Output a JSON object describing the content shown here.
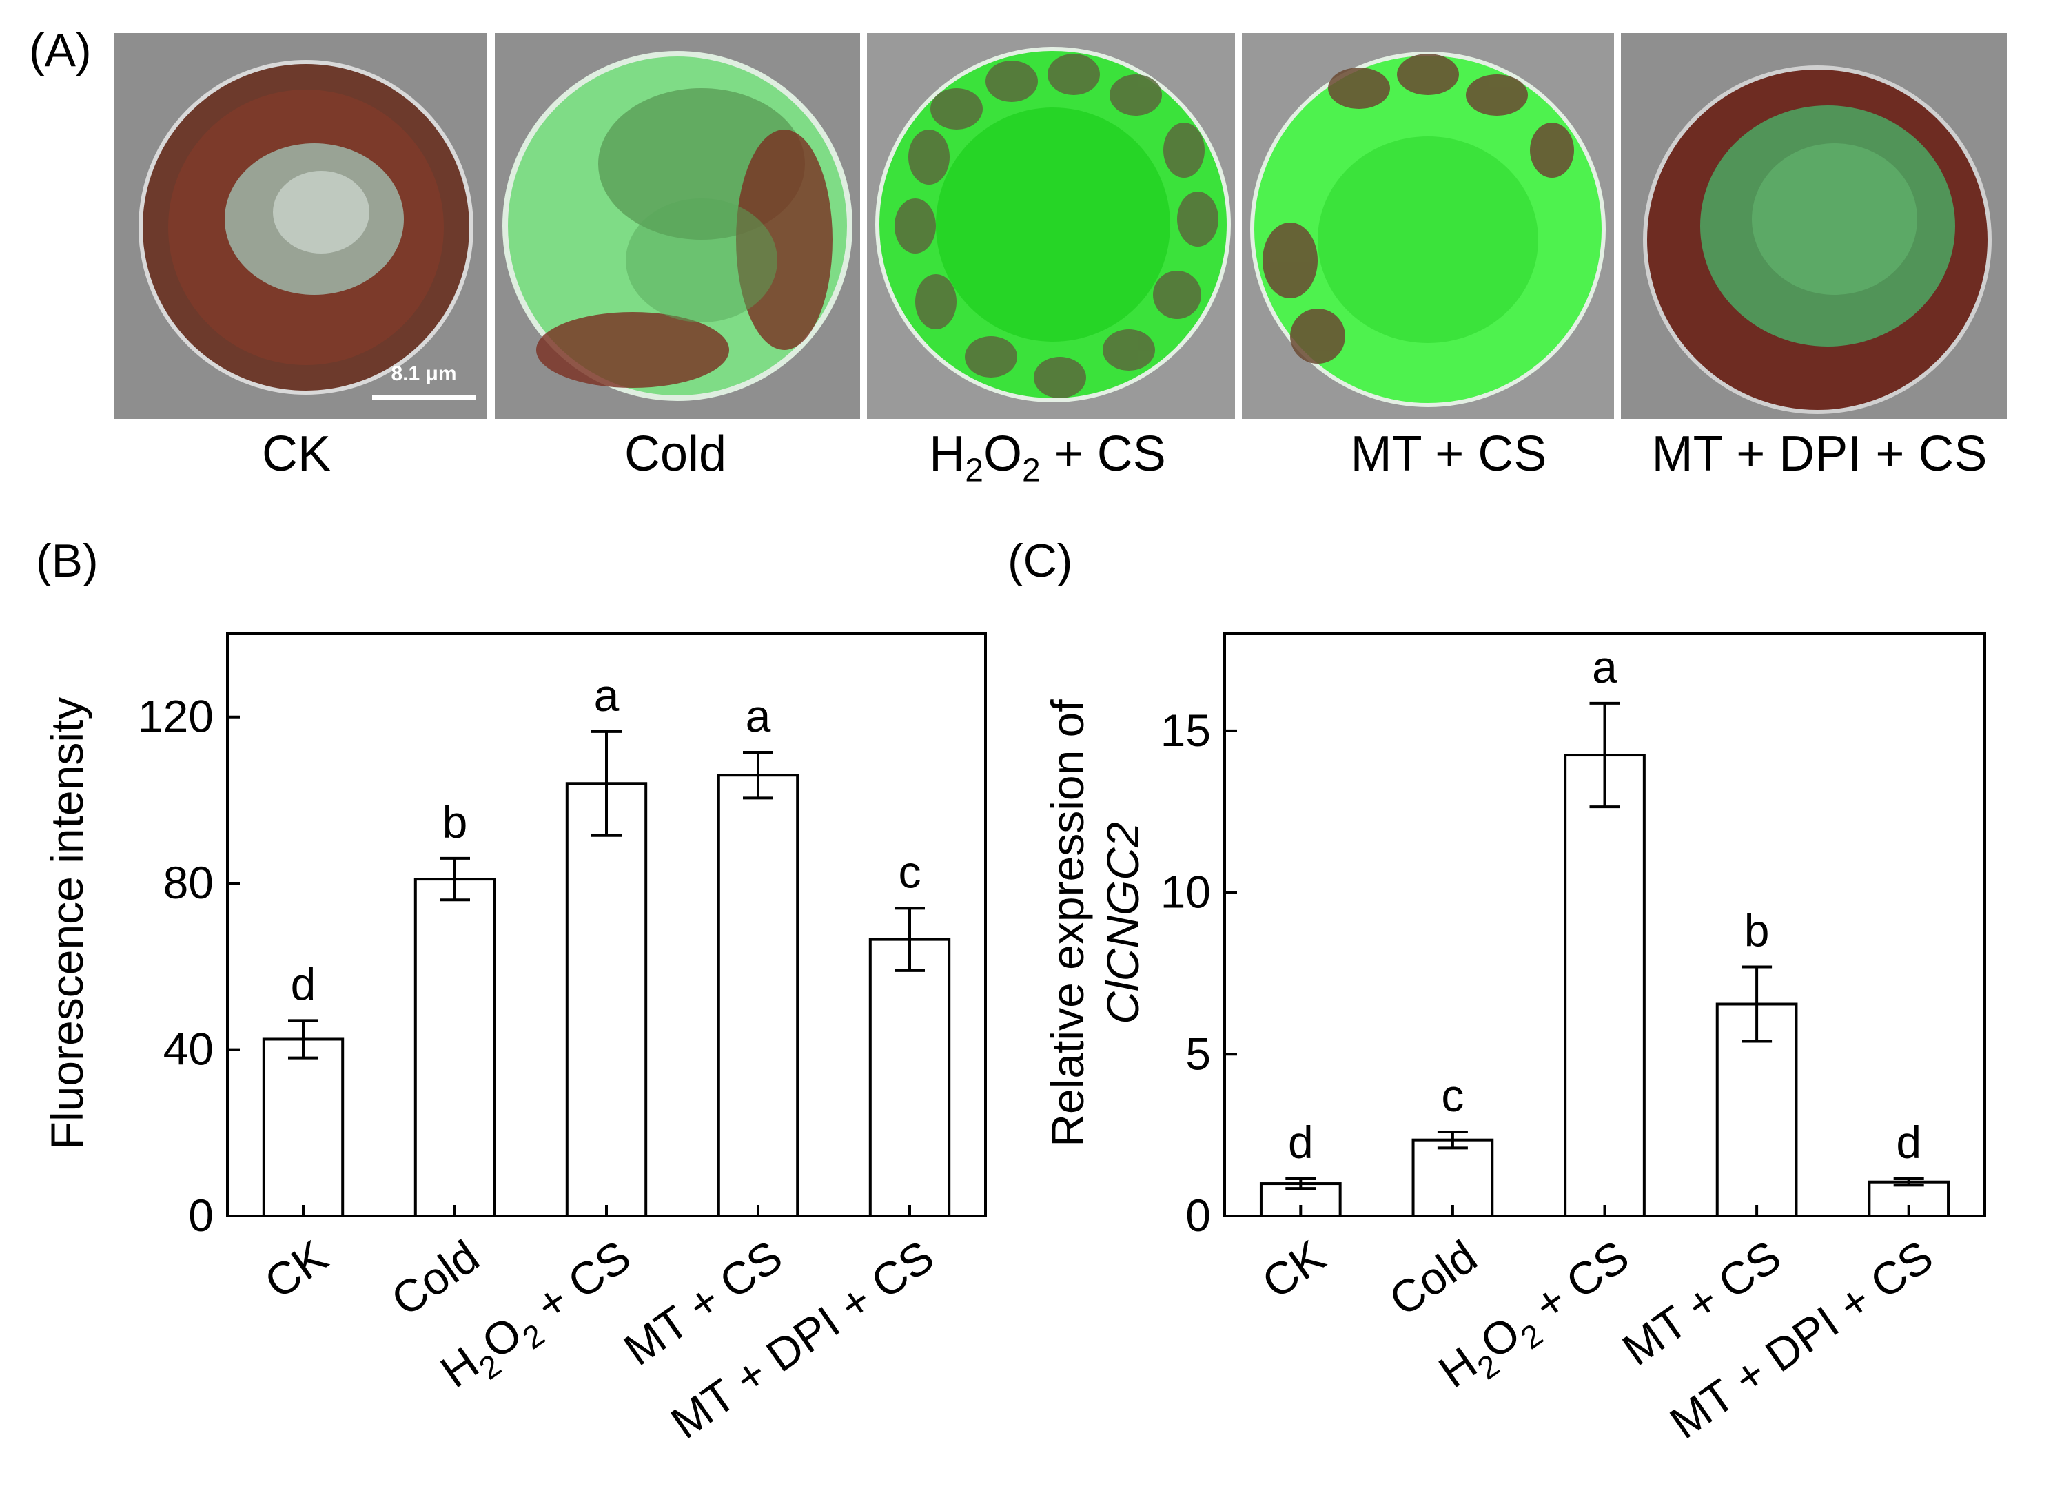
{
  "panels": {
    "a": "(A)",
    "b": "(B)",
    "c": "(C)"
  },
  "micrographs": {
    "scale_bar": "8.1 μm",
    "captions": [
      {
        "main": "CK",
        "sub": "",
        "tail": ""
      },
      {
        "main": "Cold",
        "sub": "",
        "tail": ""
      },
      {
        "main": "H",
        "sub": "2",
        "tail": "O"
      },
      {
        "main": "MT + CS",
        "sub": "",
        "tail": ""
      },
      {
        "main": "MT + DPI + CS",
        "sub": "",
        "tail": ""
      }
    ],
    "h2o2_caption_end": "2",
    "h2o2_caption_rest": " + CS"
  },
  "chart_data": [
    {
      "type": "bar",
      "panel": "(B)",
      "ylabel": "Fluorescence intensity",
      "categories": [
        "CK",
        "Cold",
        "H2O2 + CS",
        "MT + CS",
        "MT + DPI + CS"
      ],
      "values": [
        42.5,
        81,
        104,
        106,
        66.5
      ],
      "errors": [
        4.5,
        5,
        12.5,
        5.5,
        7.5
      ],
      "significance": [
        "d",
        "b",
        "a",
        "a",
        "c"
      ],
      "ylim": [
        0,
        140
      ],
      "yticks": [
        0,
        40,
        80,
        120
      ]
    },
    {
      "type": "bar",
      "panel": "(C)",
      "ylabel": "Relative expression of",
      "ylabel_gene": "ClCNGC2",
      "categories": [
        "CK",
        "Cold",
        "H2O2 + CS",
        "MT + CS",
        "MT + DPI + CS"
      ],
      "values": [
        1.0,
        2.35,
        14.25,
        6.55,
        1.05
      ],
      "errors": [
        0.15,
        0.25,
        1.6,
        1.15,
        0.1
      ],
      "significance": [
        "d",
        "c",
        "a",
        "b",
        "d"
      ],
      "ylim": [
        0,
        18
      ],
      "yticks": [
        0,
        5,
        10,
        15
      ]
    }
  ],
  "colors": {
    "bar_fill": "#ffffff",
    "bar_stroke": "#000000",
    "green": "#3ee83e",
    "chloroplast": "#7a2a1e",
    "background_gray": "#8f8f8f"
  }
}
